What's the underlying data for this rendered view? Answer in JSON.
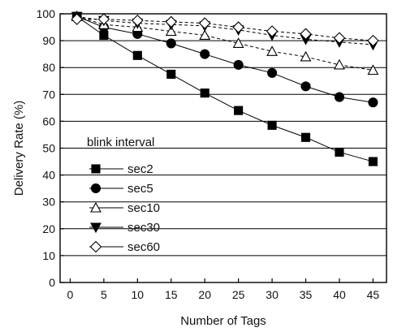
{
  "chart_data": {
    "type": "line",
    "title": "",
    "xlabel": "Number of Tags",
    "ylabel": "Delivery Rate (%)",
    "xlim": [
      -1.5,
      47
    ],
    "ylim": [
      0,
      100
    ],
    "xticks": [
      0,
      5,
      10,
      15,
      20,
      25,
      30,
      35,
      40,
      45
    ],
    "yticks": [
      0,
      10,
      20,
      30,
      40,
      50,
      60,
      70,
      80,
      90,
      100
    ],
    "grid": "horizontal",
    "legend": {
      "title": "blink interval",
      "placement": "lower-left"
    },
    "x": [
      1,
      5,
      10,
      15,
      20,
      25,
      30,
      35,
      40,
      45
    ],
    "series": [
      {
        "name": "sec2",
        "marker": "square",
        "values": [
          99,
          92,
          84.5,
          77.5,
          70.5,
          64,
          58.5,
          54,
          48.5,
          45
        ]
      },
      {
        "name": "sec5",
        "marker": "circle",
        "values": [
          99,
          95,
          92.5,
          89,
          85,
          81,
          78,
          73,
          69,
          67
        ]
      },
      {
        "name": "sec10",
        "marker": "triangle-open",
        "values": [
          99,
          96,
          95,
          93.5,
          92,
          89,
          86,
          84,
          81,
          79
        ]
      },
      {
        "name": "sec30",
        "marker": "triangle-down",
        "values": [
          99,
          97.5,
          96.5,
          96,
          95.5,
          94,
          92,
          90.5,
          89.5,
          88.5
        ]
      },
      {
        "name": "sec60",
        "marker": "diamond-open",
        "values": [
          98,
          98,
          97.5,
          97,
          96.5,
          95,
          93.5,
          92.5,
          91,
          90
        ]
      }
    ]
  }
}
